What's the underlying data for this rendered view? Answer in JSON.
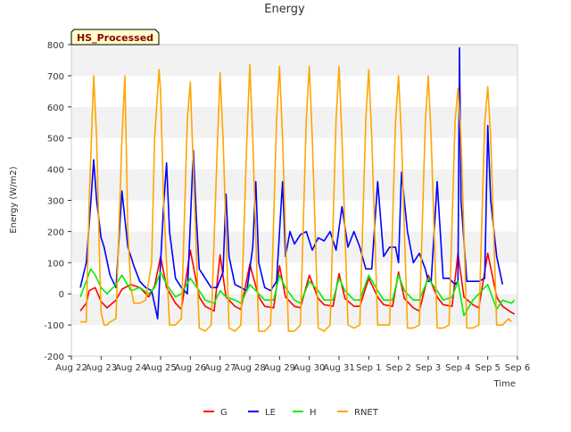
{
  "chart_data": {
    "type": "line",
    "title": "Energy",
    "xlabel": "Time",
    "ylabel": "Energy (W/m2)",
    "badge": "HS_Processed",
    "ylim": [
      -200,
      800
    ],
    "y_ticks": [
      -200,
      -100,
      0,
      100,
      200,
      300,
      400,
      500,
      600,
      700,
      800
    ],
    "xlim": [
      0,
      15
    ],
    "x_ticks": [
      0,
      1,
      2,
      3,
      4,
      5,
      6,
      7,
      8,
      9,
      10,
      11,
      12,
      13,
      14,
      15
    ],
    "x_tick_labels": [
      "Aug 22",
      "Aug 23",
      "Aug 24",
      "Aug 25",
      "Aug 26",
      "Aug 27",
      "Aug 28",
      "Aug 29",
      "Aug 30",
      "Aug 31",
      "Sep 1",
      "Sep 2",
      "Sep 3",
      "Sep 4",
      "Sep 5",
      "Sep 6"
    ],
    "grid": "horizontal bands",
    "legend_position": "bottom-center",
    "series": [
      {
        "name": "G",
        "color": "#ff0000",
        "x": [
          0.3,
          0.5,
          0.6,
          0.8,
          1.0,
          1.2,
          1.5,
          1.7,
          2.0,
          2.3,
          2.6,
          2.8,
          3.0,
          3.2,
          3.5,
          3.7,
          4.0,
          4.3,
          4.5,
          4.8,
          5.0,
          5.2,
          5.5,
          5.7,
          6.0,
          6.3,
          6.5,
          6.8,
          7.0,
          7.2,
          7.5,
          7.7,
          8.0,
          8.3,
          8.5,
          8.8,
          9.0,
          9.2,
          9.5,
          9.7,
          10.0,
          10.3,
          10.5,
          10.8,
          11.0,
          11.2,
          11.5,
          11.7,
          12.0,
          12.3,
          12.5,
          12.8,
          13.0,
          13.2,
          13.5,
          13.7,
          14.0,
          14.3,
          14.5,
          14.8,
          14.9
        ],
        "y": [
          -55,
          -30,
          10,
          20,
          -25,
          -45,
          -20,
          15,
          30,
          20,
          -10,
          25,
          120,
          20,
          -30,
          -50,
          140,
          -10,
          -40,
          -55,
          125,
          -10,
          -40,
          -50,
          95,
          -10,
          -40,
          -45,
          90,
          -10,
          -40,
          -45,
          60,
          -15,
          -35,
          -40,
          65,
          -15,
          -40,
          -40,
          50,
          -10,
          -35,
          -40,
          70,
          -15,
          -45,
          -55,
          60,
          -10,
          -35,
          -40,
          130,
          -10,
          -35,
          -45,
          130,
          -10,
          -40,
          -60,
          -65
        ]
      },
      {
        "name": "LE",
        "color": "#0000ff",
        "x": [
          0.3,
          0.5,
          0.65,
          0.75,
          0.85,
          1.0,
          1.1,
          1.3,
          1.5,
          1.7,
          1.9,
          2.1,
          2.3,
          2.5,
          2.7,
          2.9,
          3.1,
          3.2,
          3.3,
          3.5,
          3.7,
          3.9,
          4.1,
          4.2,
          4.3,
          4.5,
          4.7,
          4.9,
          5.1,
          5.2,
          5.3,
          5.5,
          5.7,
          5.9,
          6.1,
          6.2,
          6.3,
          6.5,
          6.7,
          6.9,
          7.0,
          7.1,
          7.2,
          7.35,
          7.5,
          7.7,
          7.9,
          8.1,
          8.3,
          8.5,
          8.7,
          8.9,
          9.1,
          9.3,
          9.5,
          9.7,
          9.9,
          10.1,
          10.3,
          10.5,
          10.7,
          10.9,
          11.0,
          11.1,
          11.3,
          11.5,
          11.7,
          11.9,
          12.0,
          12.1,
          12.3,
          12.5,
          12.7,
          12.9,
          13.0,
          13.05,
          13.1,
          13.3,
          13.5,
          13.7,
          13.9,
          14.0,
          14.1,
          14.3,
          14.5
        ],
        "y": [
          20,
          100,
          290,
          430,
          300,
          180,
          150,
          60,
          20,
          330,
          150,
          90,
          40,
          20,
          10,
          -80,
          280,
          420,
          200,
          50,
          20,
          0,
          460,
          250,
          80,
          50,
          20,
          20,
          70,
          320,
          120,
          30,
          20,
          10,
          150,
          360,
          100,
          20,
          10,
          40,
          200,
          360,
          120,
          200,
          160,
          190,
          200,
          140,
          180,
          170,
          200,
          140,
          280,
          150,
          200,
          150,
          80,
          80,
          360,
          120,
          150,
          150,
          100,
          390,
          200,
          100,
          130,
          80,
          40,
          40,
          360,
          50,
          50,
          30,
          40,
          790,
          300,
          40,
          40,
          40,
          50,
          540,
          300,
          120,
          30
        ]
      },
      {
        "name": "H",
        "color": "#00ee00",
        "x": [
          0.3,
          0.5,
          0.65,
          0.8,
          1.0,
          1.2,
          1.5,
          1.7,
          2.0,
          2.3,
          2.6,
          2.8,
          3.0,
          3.2,
          3.5,
          3.7,
          4.0,
          4.3,
          4.5,
          4.8,
          5.0,
          5.2,
          5.5,
          5.7,
          6.0,
          6.3,
          6.5,
          6.8,
          7.0,
          7.2,
          7.5,
          7.7,
          8.0,
          8.3,
          8.5,
          8.8,
          9.0,
          9.2,
          9.5,
          9.7,
          10.0,
          10.3,
          10.5,
          10.8,
          11.0,
          11.2,
          11.5,
          11.7,
          12.0,
          12.3,
          12.5,
          12.8,
          13.0,
          13.2,
          13.5,
          13.7,
          14.0,
          14.3,
          14.5,
          14.8,
          14.9
        ],
        "y": [
          -10,
          40,
          80,
          60,
          20,
          0,
          30,
          60,
          10,
          20,
          0,
          20,
          70,
          30,
          -10,
          0,
          50,
          10,
          -20,
          -30,
          10,
          -10,
          -20,
          -30,
          30,
          0,
          -20,
          -20,
          60,
          20,
          -20,
          -30,
          40,
          10,
          -20,
          -20,
          50,
          10,
          -20,
          -20,
          60,
          10,
          -20,
          -20,
          60,
          10,
          -20,
          -20,
          50,
          10,
          -20,
          -10,
          40,
          -70,
          -20,
          0,
          30,
          -50,
          -20,
          -30,
          -20
        ]
      },
      {
        "name": "RNET",
        "color": "#ffa500",
        "x": [
          0.3,
          0.5,
          0.6,
          0.75,
          0.85,
          0.95,
          1.0,
          1.1,
          1.2,
          1.3,
          1.5,
          1.7,
          1.8,
          1.9,
          2.0,
          2.1,
          2.3,
          2.5,
          2.7,
          2.8,
          2.95,
          3.0,
          3.1,
          3.3,
          3.5,
          3.7,
          3.9,
          4.0,
          4.1,
          4.3,
          4.5,
          4.7,
          4.9,
          5.0,
          5.1,
          5.3,
          5.5,
          5.7,
          5.9,
          6.0,
          6.1,
          6.3,
          6.5,
          6.7,
          6.9,
          7.0,
          7.1,
          7.3,
          7.5,
          7.7,
          7.9,
          8.0,
          8.1,
          8.3,
          8.5,
          8.7,
          8.9,
          9.0,
          9.1,
          9.3,
          9.5,
          9.7,
          9.9,
          10.0,
          10.1,
          10.3,
          10.5,
          10.7,
          10.9,
          11.0,
          11.1,
          11.3,
          11.5,
          11.7,
          11.9,
          12.0,
          12.1,
          12.3,
          12.5,
          12.7,
          12.9,
          13.0,
          13.1,
          13.3,
          13.5,
          13.7,
          13.9,
          14.0,
          14.1,
          14.3,
          14.5,
          14.7,
          14.8
        ],
        "y": [
          -90,
          -90,
          300,
          700,
          500,
          100,
          -60,
          -100,
          -100,
          -90,
          -80,
          500,
          700,
          200,
          20,
          -30,
          -30,
          -20,
          100,
          500,
          720,
          650,
          300,
          -100,
          -100,
          -80,
          560,
          680,
          400,
          -110,
          -120,
          -100,
          450,
          710,
          500,
          -110,
          -120,
          -100,
          500,
          735,
          500,
          -120,
          -120,
          -100,
          560,
          730,
          500,
          -120,
          -120,
          -100,
          560,
          730,
          500,
          -110,
          -120,
          -100,
          560,
          730,
          500,
          -100,
          -110,
          -100,
          560,
          720,
          500,
          -100,
          -100,
          -100,
          550,
          700,
          500,
          -110,
          -110,
          -100,
          550,
          700,
          500,
          -110,
          -110,
          -100,
          550,
          660,
          500,
          -110,
          -110,
          -100,
          550,
          665,
          500,
          -100,
          -100,
          -80,
          -90
        ]
      }
    ]
  }
}
